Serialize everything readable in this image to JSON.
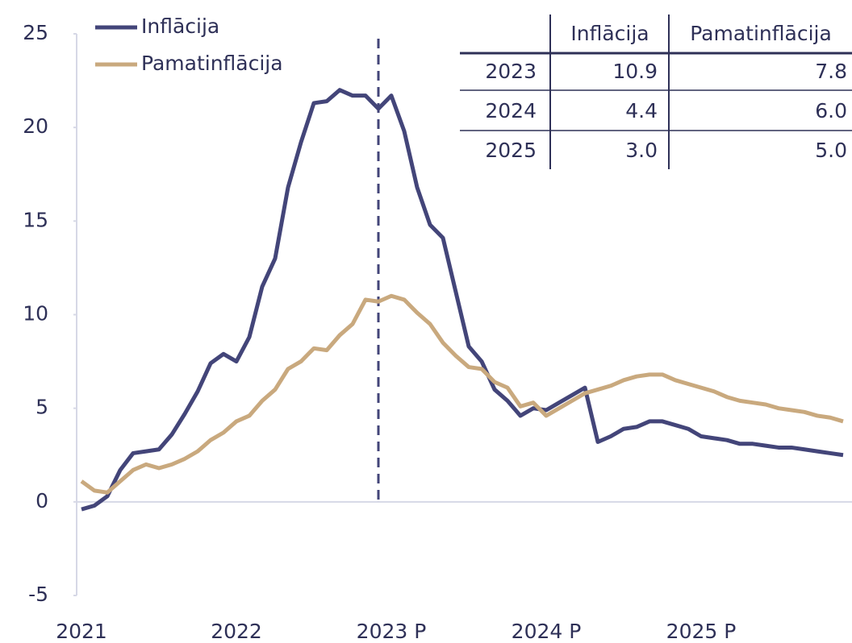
{
  "chart_data": {
    "type": "line",
    "categories": [
      "2021",
      null,
      null,
      null,
      null,
      null,
      null,
      null,
      null,
      null,
      null,
      null,
      "2022",
      null,
      null,
      null,
      null,
      null,
      null,
      null,
      null,
      null,
      null,
      null,
      "2023 P",
      null,
      null,
      null,
      null,
      null,
      null,
      null,
      null,
      null,
      null,
      null,
      "2024 P",
      null,
      null,
      null,
      null,
      null,
      null,
      null,
      null,
      null,
      null,
      null,
      "2025 P",
      null,
      null,
      null,
      null,
      null,
      null,
      null,
      null,
      null,
      null,
      null
    ],
    "series": [
      {
        "name": "Inflācija",
        "color": "#434579",
        "values": [
          -0.4,
          -0.2,
          0.3,
          1.7,
          2.6,
          2.7,
          2.8,
          3.6,
          4.7,
          5.9,
          7.4,
          7.9,
          7.5,
          8.8,
          11.5,
          13.0,
          16.8,
          19.2,
          21.3,
          21.4,
          22.0,
          21.7,
          21.7,
          21.0,
          21.7,
          19.8,
          16.8,
          14.8,
          14.1,
          11.2,
          8.3,
          7.5,
          6.0,
          5.4,
          4.6,
          5.0,
          4.9,
          5.3,
          5.7,
          6.1,
          3.2,
          3.5,
          3.9,
          4.0,
          4.3,
          4.3,
          4.1,
          3.9,
          3.5,
          3.4,
          3.3,
          3.1,
          3.1,
          3.0,
          2.9,
          2.9,
          2.8,
          2.7,
          2.6,
          2.5
        ]
      },
      {
        "name": "Pamatinflācija",
        "color": "#c9a97e",
        "values": [
          1.1,
          0.6,
          0.5,
          1.1,
          1.7,
          2.0,
          1.8,
          2.0,
          2.3,
          2.7,
          3.3,
          3.7,
          4.3,
          4.6,
          5.4,
          6.0,
          7.1,
          7.5,
          8.2,
          8.1,
          8.9,
          9.5,
          10.8,
          10.7,
          11.0,
          10.8,
          10.1,
          9.5,
          8.5,
          7.8,
          7.2,
          7.1,
          6.4,
          6.1,
          5.1,
          5.3,
          4.6,
          5.0,
          5.4,
          5.8,
          6.0,
          6.2,
          6.5,
          6.7,
          6.8,
          6.8,
          6.5,
          6.3,
          6.1,
          5.9,
          5.6,
          5.4,
          5.3,
          5.2,
          5.0,
          4.9,
          4.8,
          4.6,
          4.5,
          4.3
        ]
      }
    ],
    "ylim": [
      -5,
      25
    ],
    "yticks": [
      -5,
      0,
      5,
      10,
      15,
      20,
      25
    ],
    "forecast_start": 23,
    "legend": "top-left",
    "table": {
      "columns": [
        "Inflācija",
        "Pamatinflācija"
      ],
      "rows": [
        {
          "label": "2023",
          "values": [
            10.9,
            7.8
          ],
          "value_labels": [
            "10.9",
            "7.8"
          ]
        },
        {
          "label": "2024",
          "values": [
            4.4,
            6.0
          ],
          "value_labels": [
            "4.4",
            "6.0"
          ]
        },
        {
          "label": "2025",
          "values": [
            3.0,
            5.0
          ],
          "value_labels": [
            "3.0",
            "5.0"
          ]
        }
      ]
    }
  }
}
